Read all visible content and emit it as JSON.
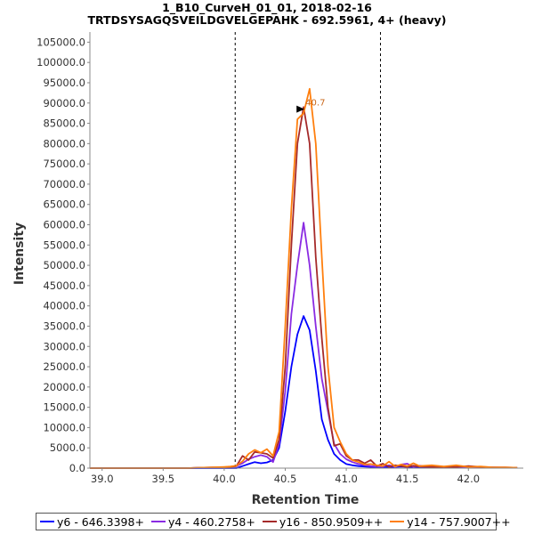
{
  "chart_data": {
    "type": "line",
    "title": "1_B10_CurveH_01_01, 2018-02-16",
    "subtitle": "TRTDSYSAGQSVEILDGVELGEPAHK - 692.5961, 4+ (heavy)",
    "xlabel": "Retention Time",
    "ylabel": "Intensity",
    "xlim": [
      38.9,
      42.45
    ],
    "ylim": [
      0,
      107500
    ],
    "xticks": [
      39.0,
      39.5,
      40.0,
      40.5,
      41.0,
      41.5,
      42.0
    ],
    "xtick_labels": [
      "39.0",
      "39.5",
      "40.0",
      "40.5",
      "41.0",
      "41.5",
      "42.0"
    ],
    "yticks": [
      0,
      5000,
      10000,
      15000,
      20000,
      25000,
      30000,
      35000,
      40000,
      45000,
      50000,
      55000,
      60000,
      65000,
      70000,
      75000,
      80000,
      85000,
      90000,
      95000,
      100000,
      105000
    ],
    "ytick_labels": [
      "0.0",
      "5000.0",
      "10000.0",
      "15000.0",
      "20000.0",
      "25000.0",
      "30000.0",
      "35000.0",
      "40000.0",
      "45000.0",
      "50000.0",
      "55000.0",
      "60000.0",
      "65000.0",
      "70000.0",
      "75000.0",
      "80000.0",
      "85000.0",
      "90000.0",
      "95000.0",
      "100000.0",
      "105000.0"
    ],
    "boundaries": [
      40.09,
      41.28
    ],
    "peak_annotation": {
      "label": "40.7",
      "x": 40.68,
      "y": 88500
    },
    "x": [
      38.9,
      39.0,
      39.1,
      39.2,
      39.3,
      39.4,
      39.5,
      39.6,
      39.7,
      39.8,
      39.9,
      40.0,
      40.05,
      40.1,
      40.15,
      40.2,
      40.25,
      40.3,
      40.35,
      40.4,
      40.45,
      40.5,
      40.55,
      40.6,
      40.65,
      40.7,
      40.75,
      40.8,
      40.85,
      40.9,
      40.95,
      41.0,
      41.05,
      41.1,
      41.15,
      41.2,
      41.25,
      41.3,
      41.35,
      41.4,
      41.45,
      41.5,
      41.55,
      41.6,
      41.7,
      41.8,
      41.9,
      42.0,
      42.1,
      42.2,
      42.3,
      42.4
    ],
    "series": [
      {
        "name": "y6 - 646.3398+",
        "color": "#0000ff",
        "values": [
          0,
          0,
          0,
          0,
          0,
          0,
          0,
          0,
          0,
          0,
          0,
          0,
          0,
          0,
          500,
          1000,
          1500,
          1200,
          1400,
          2000,
          5000,
          14000,
          25000,
          33000,
          37500,
          34000,
          24000,
          12000,
          7000,
          3500,
          2000,
          1000,
          700,
          500,
          400,
          300,
          300,
          300,
          200,
          300,
          400,
          300,
          200,
          300,
          200,
          200,
          200,
          200,
          100,
          100,
          100,
          100
        ]
      },
      {
        "name": "y4 - 460.2758+",
        "color": "#8a2be2",
        "values": [
          0,
          0,
          0,
          0,
          0,
          0,
          0,
          0,
          0,
          100,
          100,
          200,
          300,
          500,
          1200,
          2200,
          2800,
          3200,
          2800,
          1500,
          6000,
          19000,
          38000,
          50000,
          60500,
          50000,
          35000,
          22000,
          14000,
          6000,
          3500,
          2200,
          1500,
          1000,
          700,
          500,
          400,
          400,
          700,
          300,
          900,
          1100,
          300,
          600,
          400,
          300,
          300,
          200,
          200,
          200,
          100,
          100
        ]
      },
      {
        "name": "y16 - 850.9509++",
        "color": "#a52a2a",
        "values": [
          0,
          0,
          0,
          0,
          0,
          0,
          0,
          0,
          0,
          100,
          200,
          200,
          300,
          500,
          3000,
          2000,
          4000,
          3800,
          3500,
          2500,
          7000,
          25000,
          55000,
          80000,
          89000,
          80000,
          52000,
          32000,
          15000,
          5500,
          6000,
          3000,
          2000,
          2000,
          1200,
          2000,
          500,
          1100,
          300,
          700,
          500,
          300,
          600,
          400,
          300,
          200,
          300,
          500,
          300,
          200,
          200,
          100
        ]
      },
      {
        "name": "y14 - 757.9007++",
        "color": "#ff7f0e",
        "values": [
          0,
          0,
          0,
          0,
          0,
          0,
          0,
          0,
          0,
          100,
          200,
          300,
          400,
          600,
          1700,
          3500,
          4500,
          3800,
          4700,
          3000,
          9000,
          35000,
          64000,
          86000,
          87500,
          93500,
          80000,
          52000,
          25000,
          10000,
          6500,
          3500,
          2000,
          1500,
          900,
          1000,
          700,
          500,
          1600,
          400,
          900,
          500,
          1200,
          500,
          700,
          400,
          700,
          300,
          400,
          200,
          200,
          100
        ]
      }
    ]
  }
}
